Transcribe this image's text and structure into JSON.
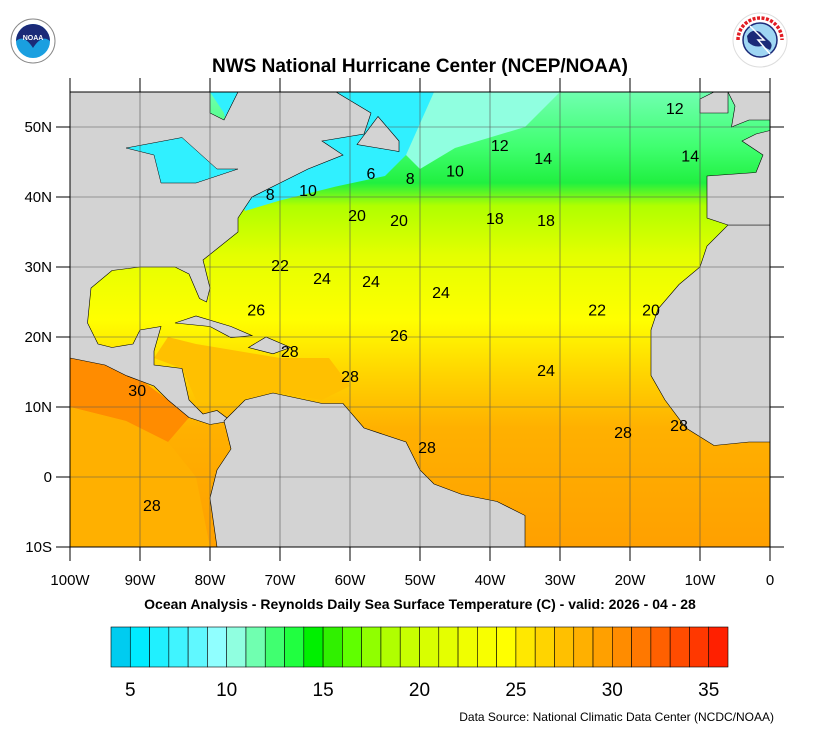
{
  "header": {
    "title": "NWS National Hurricane Center (NCEP/NOAA)",
    "left_logo": "NOAA",
    "right_logo": "NATIONAL WEATHER SERVICE"
  },
  "map": {
    "lon_range": [
      -100,
      0
    ],
    "lat_range": [
      -10,
      55
    ],
    "lon_ticks": [
      {
        "value": -100,
        "label": "100W"
      },
      {
        "value": -90,
        "label": "90W"
      },
      {
        "value": -80,
        "label": "80W"
      },
      {
        "value": -70,
        "label": "70W"
      },
      {
        "value": -60,
        "label": "60W"
      },
      {
        "value": -50,
        "label": "50W"
      },
      {
        "value": -40,
        "label": "40W"
      },
      {
        "value": -30,
        "label": "30W"
      },
      {
        "value": -20,
        "label": "20W"
      },
      {
        "value": -10,
        "label": "10W"
      },
      {
        "value": 0,
        "label": "0"
      }
    ],
    "lat_ticks": [
      {
        "value": 50,
        "label": "50N"
      },
      {
        "value": 40,
        "label": "40N"
      },
      {
        "value": 30,
        "label": "30N"
      },
      {
        "value": 20,
        "label": "20N"
      },
      {
        "value": 10,
        "label": "10N"
      },
      {
        "value": 0,
        "label": "0"
      },
      {
        "value": -10,
        "label": "10S"
      }
    ],
    "grid": true,
    "land_color": "#d3d3d3",
    "contour_labels": [
      {
        "text": "12",
        "lon": -13.6,
        "lat": 52.7
      },
      {
        "text": "12",
        "lon": -38.6,
        "lat": 47.4
      },
      {
        "text": "14",
        "lon": -32.4,
        "lat": 45.6
      },
      {
        "text": "14",
        "lon": -11.4,
        "lat": 45.9
      },
      {
        "text": "6",
        "lon": -57,
        "lat": 43.4
      },
      {
        "text": "8",
        "lon": -51.4,
        "lat": 42.7
      },
      {
        "text": "10",
        "lon": -45,
        "lat": 43.8
      },
      {
        "text": "10",
        "lon": -66,
        "lat": 41
      },
      {
        "text": "8",
        "lon": -71.4,
        "lat": 40.4
      },
      {
        "text": "20",
        "lon": -59,
        "lat": 37.4
      },
      {
        "text": "20",
        "lon": -53,
        "lat": 36.7
      },
      {
        "text": "18",
        "lon": -39.3,
        "lat": 37
      },
      {
        "text": "18",
        "lon": -32,
        "lat": 36.7
      },
      {
        "text": "22",
        "lon": -70,
        "lat": 30.3
      },
      {
        "text": "24",
        "lon": -64,
        "lat": 28.4
      },
      {
        "text": "24",
        "lon": -57,
        "lat": 28
      },
      {
        "text": "24",
        "lon": -47,
        "lat": 26.4
      },
      {
        "text": "26",
        "lon": -73.4,
        "lat": 23.9
      },
      {
        "text": "26",
        "lon": -53,
        "lat": 20.3
      },
      {
        "text": "22",
        "lon": -24.7,
        "lat": 23.9
      },
      {
        "text": "20",
        "lon": -17,
        "lat": 23.9
      },
      {
        "text": "28",
        "lon": -68.6,
        "lat": 18
      },
      {
        "text": "28",
        "lon": -60,
        "lat": 14.4
      },
      {
        "text": "30",
        "lon": -90.4,
        "lat": 12.4
      },
      {
        "text": "24",
        "lon": -32,
        "lat": 15.3
      },
      {
        "text": "28",
        "lon": -49,
        "lat": 4.3
      },
      {
        "text": "28",
        "lon": -21,
        "lat": 6.4
      },
      {
        "text": "28",
        "lon": -13,
        "lat": 7.4
      },
      {
        "text": "28",
        "lon": -88.3,
        "lat": -4
      }
    ]
  },
  "subtitle": "Ocean Analysis - Reynolds Daily Sea Surface Temperature (C) - valid: 2026 - 04 - 28",
  "colorbar": {
    "min": 4,
    "max": 36,
    "labels": [
      "5",
      "10",
      "15",
      "20",
      "25",
      "30",
      "35"
    ],
    "label_values": [
      5,
      10,
      15,
      20,
      25,
      30,
      35
    ],
    "colors": [
      "#00ccf0",
      "#00ecff",
      "#20f0ff",
      "#40f4ff",
      "#60f8ff",
      "#90ffff",
      "#90ffe0",
      "#70ffb0",
      "#40ff70",
      "#20ff40",
      "#00f000",
      "#30f000",
      "#60ff00",
      "#90ff00",
      "#b0ff00",
      "#c8ff00",
      "#d8ff00",
      "#e4ff00",
      "#f0ff00",
      "#f8ff00",
      "#ffff00",
      "#ffe800",
      "#ffd400",
      "#ffc000",
      "#ffb000",
      "#ffa000",
      "#ff8c00",
      "#ff7800",
      "#ff6000",
      "#ff4c00",
      "#ff3800",
      "#ff2000"
    ]
  },
  "footer": {
    "source": "Data Source: National Climatic Data Center (NCDC/NOAA)"
  }
}
